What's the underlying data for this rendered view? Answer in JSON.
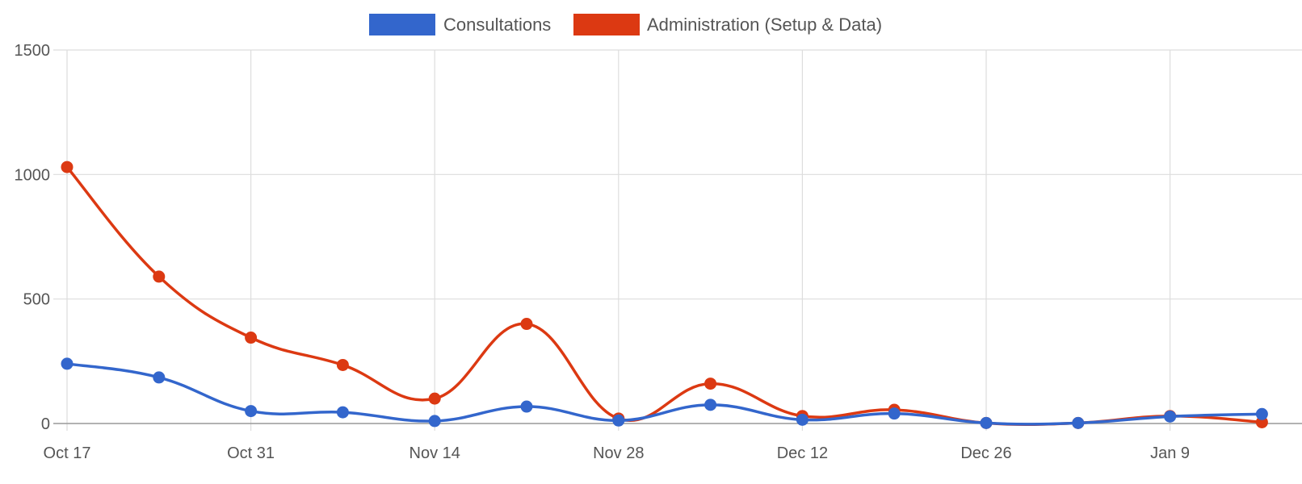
{
  "chart_data": {
    "type": "line",
    "title": "",
    "xlabel": "",
    "ylabel": "",
    "ylim": [
      0,
      1500
    ],
    "yticks": [
      0,
      500,
      1000,
      1500
    ],
    "x_dates": [
      "Oct 17",
      "Oct 24",
      "Oct 31",
      "Nov 7",
      "Nov 14",
      "Nov 21",
      "Nov 28",
      "Dec 5",
      "Dec 12",
      "Dec 19",
      "Dec 26",
      "Jan 2",
      "Jan 9",
      "Jan 16"
    ],
    "xtick_labels": [
      "Oct 17",
      "Oct 31",
      "Nov 14",
      "Nov 28",
      "Dec 12",
      "Dec 26",
      "Jan 9"
    ],
    "xtick_index": [
      0,
      2,
      4,
      6,
      8,
      10,
      12
    ],
    "grid": true,
    "legend_position": "top",
    "series": [
      {
        "name": "Consultations",
        "color": "#3366cc",
        "values": [
          240,
          185,
          50,
          45,
          10,
          68,
          12,
          75,
          15,
          40,
          2,
          2,
          28,
          38
        ]
      },
      {
        "name": "Administration (Setup & Data)",
        "color": "#dc3912",
        "values": [
          1030,
          590,
          345,
          235,
          100,
          400,
          20,
          160,
          30,
          55,
          2,
          2,
          30,
          5
        ]
      }
    ]
  }
}
